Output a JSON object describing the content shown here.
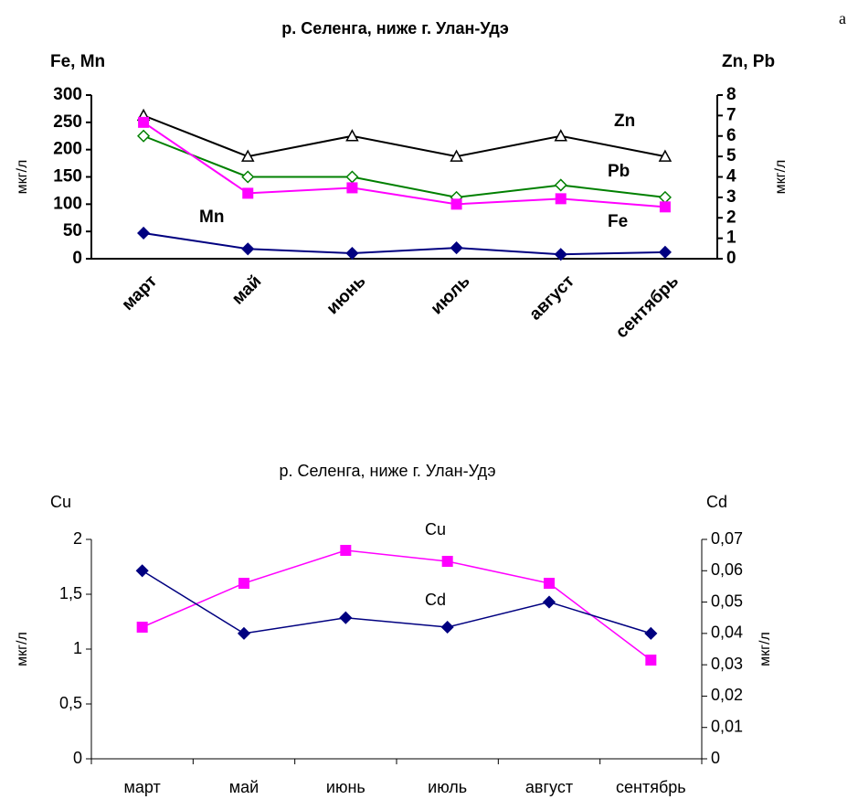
{
  "label": "а",
  "chart_data": [
    {
      "type": "line",
      "title": "р. Селенга, ниже г. Улан-Удэ",
      "y_title": "Fe, Mn",
      "y2_title": "Zn, Pb",
      "ylabel": "мкг/л",
      "y2label": "мкг/л",
      "categories": [
        "март",
        "май",
        "июнь",
        "июль",
        "август",
        "сентябрь"
      ],
      "ylim": [
        0,
        300
      ],
      "yticks": [
        0,
        50,
        100,
        150,
        200,
        250,
        300
      ],
      "y2lim": [
        0,
        8
      ],
      "y2ticks": [
        0,
        1,
        2,
        3,
        4,
        5,
        6,
        7,
        8
      ],
      "series": [
        {
          "name": "Zn",
          "color": "#000000",
          "marker": "triangle-open",
          "axis": "y2",
          "values": [
            7,
            5,
            6,
            5,
            6,
            5
          ]
        },
        {
          "name": "Pb",
          "color": "#008000",
          "marker": "diamond-open",
          "axis": "y2",
          "values": [
            6,
            4,
            4,
            3,
            3.6,
            3
          ]
        },
        {
          "name": "Fe",
          "color": "#ff00ff",
          "marker": "square",
          "values": [
            250,
            120,
            130,
            100,
            110,
            95
          ]
        },
        {
          "name": "Mn",
          "color": "#000080",
          "marker": "diamond",
          "values": [
            47,
            18,
            10,
            20,
            8,
            12
          ]
        }
      ]
    },
    {
      "type": "line",
      "title": "р. Селенга, ниже г. Улан-Удэ",
      "y_title": "Cu",
      "y2_title": "Cd",
      "ylabel": "мкг/л",
      "y2label": "мкг/л",
      "categories": [
        "март",
        "май",
        "июнь",
        "июль",
        "август",
        "сентябрь"
      ],
      "ylim": [
        0,
        2
      ],
      "yticks": [
        0,
        {
          "value": 0.5,
          "label": "0,5"
        },
        1,
        {
          "value": 1.5,
          "label": "1,5"
        },
        2
      ],
      "y2lim": [
        0,
        0.07
      ],
      "y2ticks": [
        0,
        {
          "value": 0.01,
          "label": "0,01"
        },
        {
          "value": 0.02,
          "label": "0,02"
        },
        {
          "value": 0.03,
          "label": "0,03"
        },
        {
          "value": 0.04,
          "label": "0,04"
        },
        {
          "value": 0.05,
          "label": "0,05"
        },
        {
          "value": 0.06,
          "label": "0,06"
        },
        {
          "value": 0.07,
          "label": "0,07"
        }
      ],
      "series": [
        {
          "name": "Cu",
          "color": "#ff00ff",
          "marker": "square",
          "values": [
            1.2,
            1.6,
            1.9,
            1.8,
            1.6,
            0.9
          ]
        },
        {
          "name": "Cd",
          "color": "#000080",
          "marker": "diamond",
          "axis": "y2",
          "values": [
            0.06,
            0.04,
            0.045,
            0.042,
            0.05,
            0.04
          ]
        }
      ]
    }
  ]
}
